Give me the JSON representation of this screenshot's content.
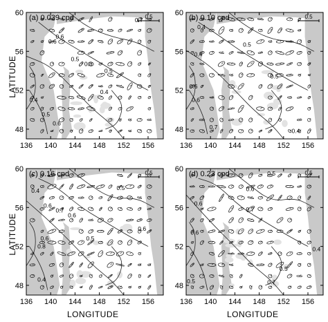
{
  "figure": {
    "y_axis_label": "LATITUDE",
    "x_axis_label": "LONGITUDE",
    "scale_bar_label": "0.5",
    "x_ticks": [
      "136",
      "140",
      "144",
      "148",
      "152",
      "156"
    ],
    "y_ticks": [
      "48",
      "52",
      "56",
      "60"
    ],
    "lon_range": [
      136,
      158.5
    ],
    "lat_range": [
      47,
      60
    ],
    "land_color": "#c9c9c9",
    "panels": [
      {
        "id": "a",
        "title": "(a) 0.039 cpd",
        "contour_labels": [
          "0.7",
          "0.6",
          "0.6",
          "0.5",
          "0.5",
          "0.4",
          "0.4",
          "0.6",
          "0.5",
          "0.6"
        ]
      },
      {
        "id": "b",
        "title": "(b) 0.10 cpd",
        "contour_labels": [
          "0.4",
          "0.4",
          "0.6",
          "0.5",
          "0.6",
          "0.5",
          "0.7",
          "0.4"
        ]
      },
      {
        "id": "c",
        "title": "(c) 0.16 cpd",
        "contour_labels": [
          "0.4",
          "0.6",
          "0.7",
          "0.6",
          "0.5",
          "0.5",
          "0.6",
          "0.8",
          "0.4",
          "0.6"
        ]
      },
      {
        "id": "d",
        "title": "(d) 0.23 cpd",
        "contour_labels": [
          "0.5",
          "0.6",
          "0.6",
          "0.7",
          "0.6",
          "0.4",
          "0.5",
          "0.7",
          "0.5"
        ]
      }
    ]
  }
}
